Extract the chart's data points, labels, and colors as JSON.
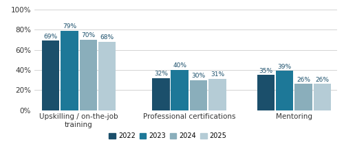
{
  "categories": [
    "Upskilling / on-the-job\ntraining",
    "Professional certifications",
    "Mentoring"
  ],
  "years": [
    "2022",
    "2023",
    "2024",
    "2025"
  ],
  "values": [
    [
      69,
      79,
      70,
      68
    ],
    [
      32,
      40,
      30,
      31
    ],
    [
      35,
      39,
      26,
      26
    ]
  ],
  "colors": [
    "#1b4f6b",
    "#1d7898",
    "#8aaebb",
    "#b5ccd6"
  ],
  "bar_labels": [
    [
      "69%",
      "79%",
      "70%",
      "68%"
    ],
    [
      "32%",
      "40%",
      "30%",
      "31%"
    ],
    [
      "35%",
      "39%",
      "26%",
      "26%"
    ]
  ],
  "ylim": [
    0,
    105
  ],
  "yticks": [
    0,
    20,
    40,
    60,
    80,
    100
  ],
  "ytick_labels": [
    "0%",
    "20%",
    "40%",
    "60%",
    "80%",
    "100%"
  ],
  "legend_labels": [
    "2022",
    "2023",
    "2024",
    "2025"
  ],
  "background_color": "#ffffff",
  "label_color": "#1b4f6b",
  "label_fontsize": 6.5,
  "axis_fontsize": 7.5,
  "legend_fontsize": 7,
  "bar_width": 0.13,
  "group_centers": [
    0.28,
    1.1,
    1.88
  ]
}
